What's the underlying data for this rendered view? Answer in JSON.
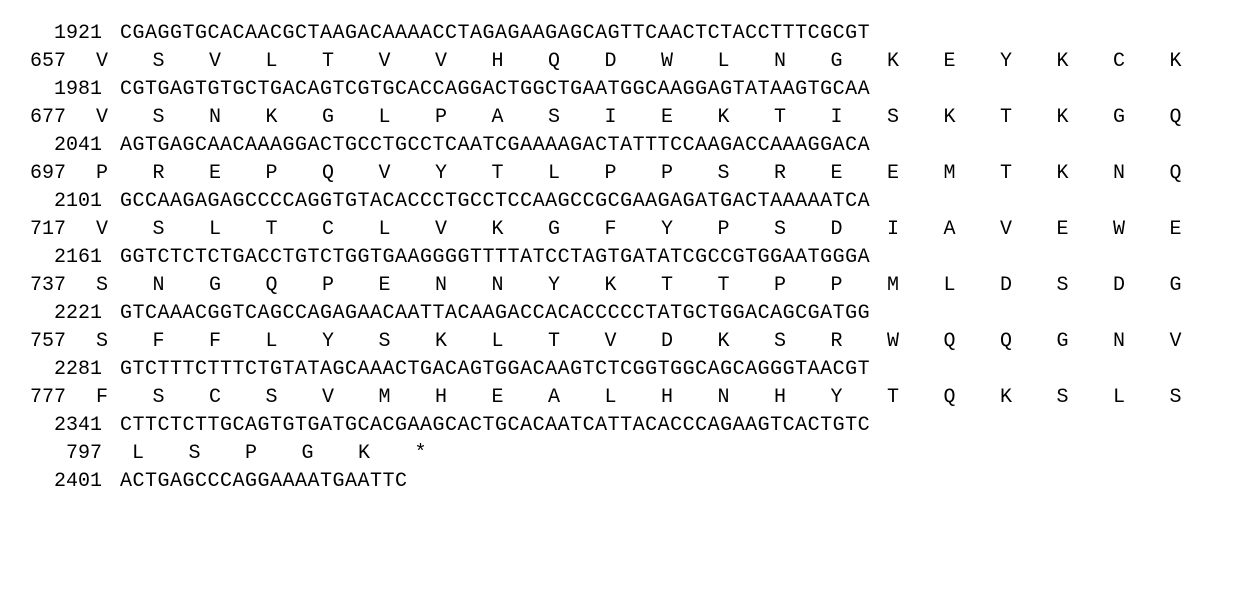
{
  "font_family": "Courier New",
  "background_color": "#ffffff",
  "text_color": "#000000",
  "rows": [
    {
      "type": "nucleotide",
      "number": "1921",
      "seq": "CGAGGTGCACAACGCTAAGACAAAACCTAGAGAAGAGCAGTTCAACTCTACCTTTCGCGT"
    },
    {
      "type": "amino",
      "number": "657",
      "aa": [
        "V",
        "S",
        "V",
        "L",
        "T",
        "V",
        "V",
        "H",
        "Q",
        "D",
        "W",
        "L",
        "N",
        "G",
        "K",
        "E",
        "Y",
        "K",
        "C",
        "K"
      ]
    },
    {
      "type": "nucleotide",
      "number": "1981",
      "seq": "CGTGAGTGTGCTGACAGTCGTGCACCAGGACTGGCTGAATGGCAAGGAGTATAAGTGCAA"
    },
    {
      "type": "amino",
      "number": "677",
      "aa": [
        "V",
        "S",
        "N",
        "K",
        "G",
        "L",
        "P",
        "A",
        "S",
        "I",
        "E",
        "K",
        "T",
        "I",
        "S",
        "K",
        "T",
        "K",
        "G",
        "Q"
      ]
    },
    {
      "type": "nucleotide",
      "number": "2041",
      "seq": "AGTGAGCAACAAAGGACTGCCTGCCTCAATCGAAAAGACTATTTCCAAGACCAAAGGACA"
    },
    {
      "type": "amino",
      "number": "697",
      "aa": [
        "P",
        "R",
        "E",
        "P",
        "Q",
        "V",
        "Y",
        "T",
        "L",
        "P",
        "P",
        "S",
        "R",
        "E",
        "E",
        "M",
        "T",
        "K",
        "N",
        "Q"
      ]
    },
    {
      "type": "nucleotide",
      "number": "2101",
      "seq": "GCCAAGAGAGCCCCAGGTGTACACCCTGCCTCCAAGCCGCGAAGAGATGACTAAAAATCA"
    },
    {
      "type": "amino",
      "number": "717",
      "aa": [
        "V",
        "S",
        "L",
        "T",
        "C",
        "L",
        "V",
        "K",
        "G",
        "F",
        "Y",
        "P",
        "S",
        "D",
        "I",
        "A",
        "V",
        "E",
        "W",
        "E"
      ]
    },
    {
      "type": "nucleotide",
      "number": "2161",
      "seq": "GGTCTCTCTGACCTGTCTGGTGAAGGGGTTTTATCCTAGTGATATCGCCGTGGAATGGGA"
    },
    {
      "type": "amino",
      "number": "737",
      "aa": [
        "S",
        "N",
        "G",
        "Q",
        "P",
        "E",
        "N",
        "N",
        "Y",
        "K",
        "T",
        "T",
        "P",
        "P",
        "M",
        "L",
        "D",
        "S",
        "D",
        "G"
      ]
    },
    {
      "type": "nucleotide",
      "number": "2221",
      "seq": "GTCAAACGGTCAGCCAGAGAACAATTACAAGACCACACCCCCTATGCTGGACAGCGATGG"
    },
    {
      "type": "amino",
      "number": "757",
      "aa": [
        "S",
        "F",
        "F",
        "L",
        "Y",
        "S",
        "K",
        "L",
        "T",
        "V",
        "D",
        "K",
        "S",
        "R",
        "W",
        "Q",
        "Q",
        "G",
        "N",
        "V"
      ]
    },
    {
      "type": "nucleotide",
      "number": "2281",
      "seq": "GTCTTTCTTTCTGTATAGCAAACTGACAGTGGACAAGTCTCGGTGGCAGCAGGGTAACGT"
    },
    {
      "type": "amino",
      "number": "777",
      "aa": [
        "F",
        "S",
        "C",
        "S",
        "V",
        "M",
        "H",
        "E",
        "A",
        "L",
        "H",
        "N",
        "H",
        "Y",
        "T",
        "Q",
        "K",
        "S",
        "L",
        "S"
      ]
    },
    {
      "type": "nucleotide",
      "number": "2341",
      "seq": "CTTCTCTTGCAGTGTGATGCACGAAGCACTGCACAATCATTACACCCAGAAGTCACTGTC"
    },
    {
      "type": "amino",
      "number": "797",
      "aa": [
        "L",
        "S",
        "P",
        "G",
        "K",
        "*"
      ]
    },
    {
      "type": "nucleotide",
      "number": "2401",
      "seq": "ACTGAGCCCAGGAAAATGAATTC"
    }
  ]
}
